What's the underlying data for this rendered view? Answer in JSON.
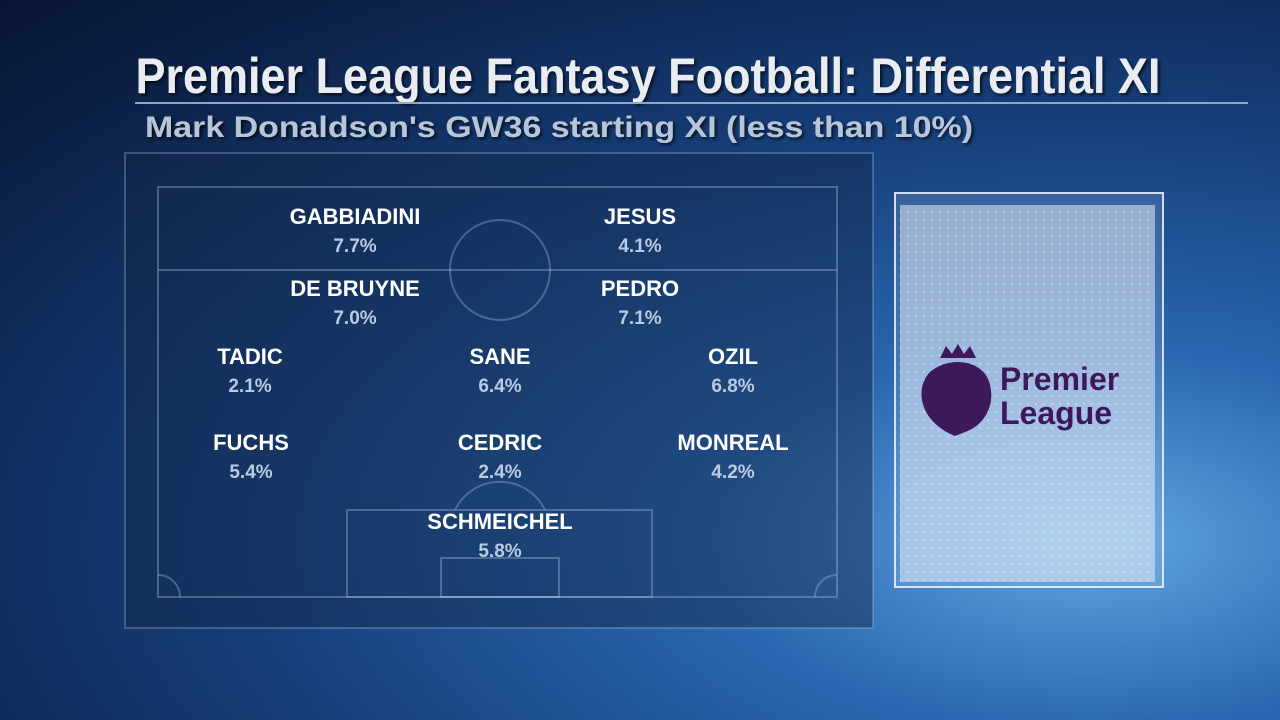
{
  "header": {
    "title": "Premier League Fantasy Football: Differential XI",
    "subtitle": "Mark Donaldson's GW36 starting XI (less than 10%)"
  },
  "players": [
    {
      "name": "GABBIADINI",
      "ownership": "7.7%"
    },
    {
      "name": "JESUS",
      "ownership": "4.1%"
    },
    {
      "name": "DE BRUYNE",
      "ownership": "7.0%"
    },
    {
      "name": "PEDRO",
      "ownership": "7.1%"
    },
    {
      "name": "TADIC",
      "ownership": "2.1%"
    },
    {
      "name": "SANE",
      "ownership": "6.4%"
    },
    {
      "name": "OZIL",
      "ownership": "6.8%"
    },
    {
      "name": "FUCHS",
      "ownership": "5.4%"
    },
    {
      "name": "CEDRIC",
      "ownership": "2.4%"
    },
    {
      "name": "MONREAL",
      "ownership": "4.2%"
    },
    {
      "name": "SCHMEICHEL",
      "ownership": "5.8%"
    }
  ],
  "logo": {
    "line1": "Premier",
    "line2": "League"
  }
}
